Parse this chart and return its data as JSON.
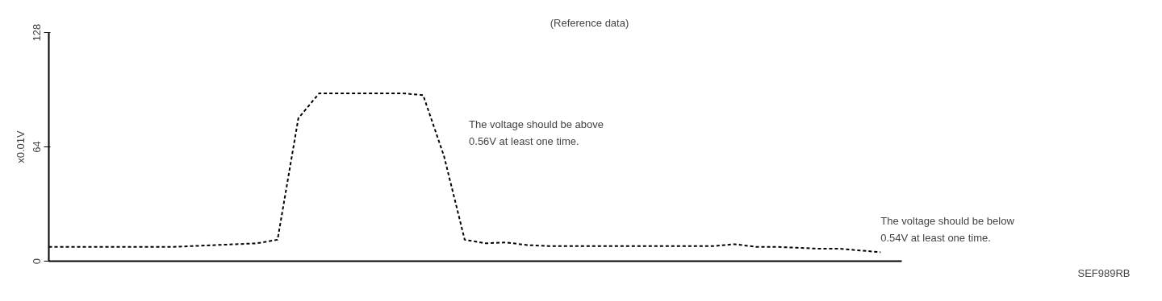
{
  "chart_data": {
    "type": "line",
    "title": "(Reference data)",
    "ylabel": "x0.01V",
    "categories": [
      null,
      null,
      null,
      null,
      null,
      null,
      null,
      null,
      null,
      null,
      null,
      null,
      null,
      null,
      null,
      null,
      null,
      null,
      null,
      null,
      null,
      null,
      null,
      null,
      null,
      null,
      null,
      null,
      null,
      null,
      null,
      null,
      null,
      null,
      null,
      null,
      null,
      null,
      null,
      null,
      null,
      null
    ],
    "series": [
      {
        "color": "#000000",
        "values": [
          8,
          8,
          8,
          8,
          8,
          8,
          8,
          8.5,
          9,
          9.5,
          10,
          12,
          80,
          94,
          94,
          94,
          94,
          94,
          93,
          59,
          12,
          10,
          10.5,
          9,
          8.5,
          8.5,
          8.5,
          8.5,
          8.5,
          8.5,
          8.5,
          8.5,
          8.5,
          9.5,
          8,
          8,
          7.5,
          7,
          7,
          6,
          5,
          null
        ]
      }
    ],
    "ylim": [
      0,
      128
    ],
    "yticks": [
      0,
      64,
      128
    ],
    "grid": false,
    "tick_labels": "y",
    "line_style": "dashed",
    "marker": "none",
    "annotations": [
      "The voltage should be above\n0.56V at least one time.",
      "The voltage should be below\n0.54V at least one time.",
      "SEF989RB"
    ]
  }
}
